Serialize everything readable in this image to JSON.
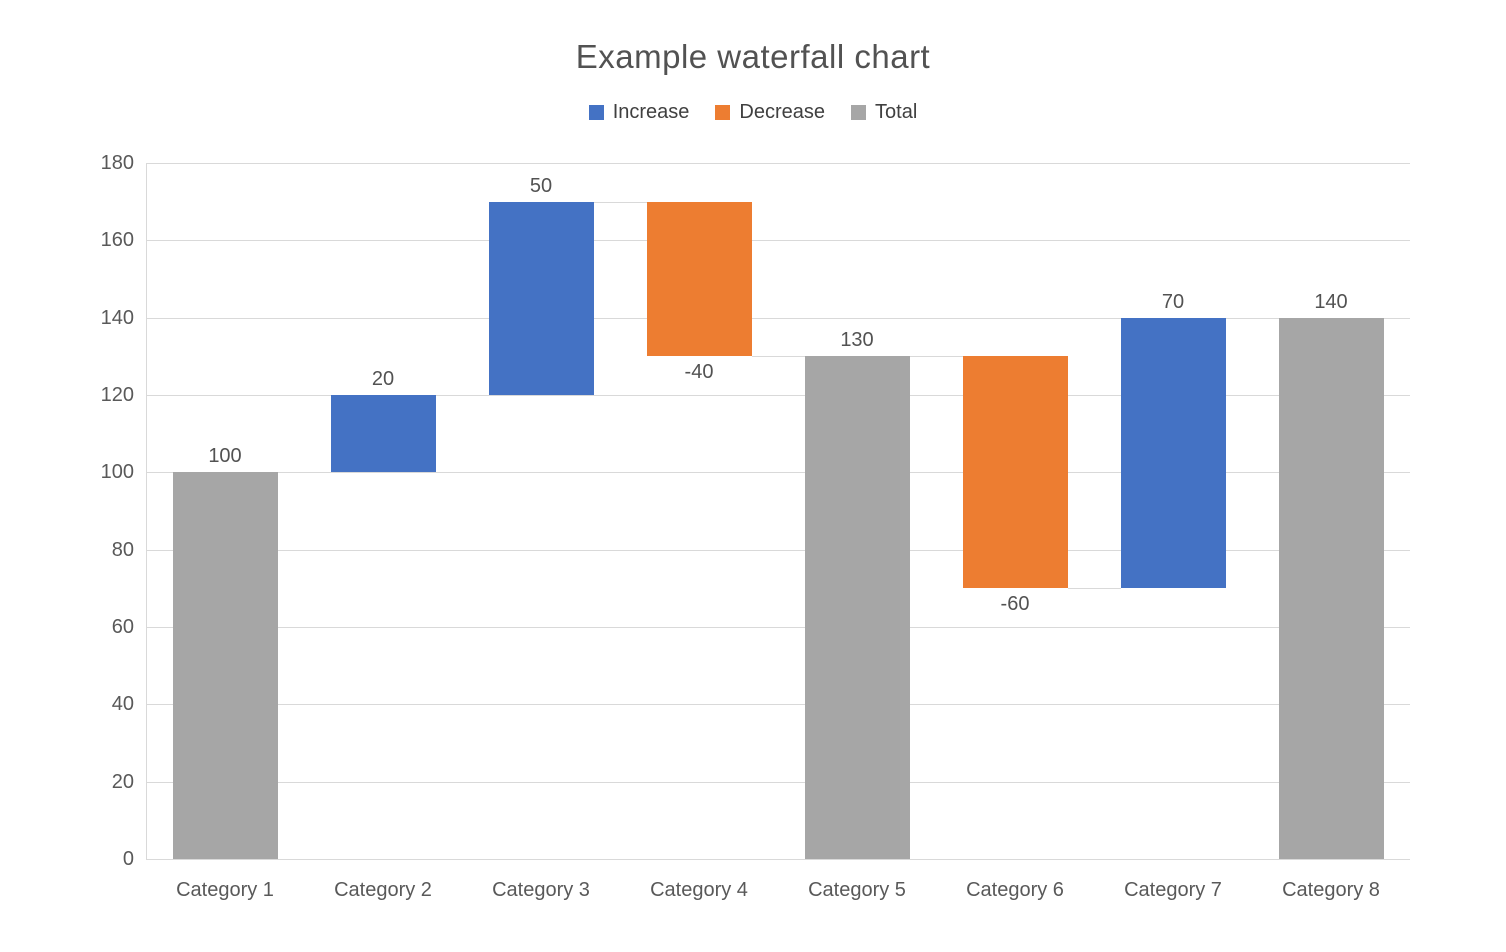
{
  "chart_data": {
    "type": "bar",
    "subtype": "waterfall",
    "title": "Example waterfall chart",
    "categories": [
      "Category 1",
      "Category 2",
      "Category 3",
      "Category 4",
      "Category 5",
      "Category 6",
      "Category 7",
      "Category 8"
    ],
    "values": [
      100,
      20,
      50,
      -40,
      130,
      -60,
      70,
      140
    ],
    "points": [
      {
        "category": "Category 1",
        "kind": "Total",
        "value": 100,
        "start": 0,
        "end": 100,
        "label": "100"
      },
      {
        "category": "Category 2",
        "kind": "Increase",
        "value": 20,
        "start": 100,
        "end": 120,
        "label": "20"
      },
      {
        "category": "Category 3",
        "kind": "Increase",
        "value": 50,
        "start": 120,
        "end": 170,
        "label": "50"
      },
      {
        "category": "Category 4",
        "kind": "Decrease",
        "value": -40,
        "start": 170,
        "end": 130,
        "label": "-40"
      },
      {
        "category": "Category 5",
        "kind": "Total",
        "value": 130,
        "start": 0,
        "end": 130,
        "label": "130"
      },
      {
        "category": "Category 6",
        "kind": "Decrease",
        "value": -60,
        "start": 130,
        "end": 70,
        "label": "-60"
      },
      {
        "category": "Category 7",
        "kind": "Increase",
        "value": 70,
        "start": 70,
        "end": 140,
        "label": "70"
      },
      {
        "category": "Category 8",
        "kind": "Total",
        "value": 140,
        "start": 0,
        "end": 140,
        "label": "140"
      }
    ],
    "legend": [
      {
        "label": "Increase",
        "kind": "Increase"
      },
      {
        "label": "Decrease",
        "kind": "Decrease"
      },
      {
        "label": "Total",
        "kind": "Total"
      }
    ],
    "legend_position": "top",
    "ylim": [
      0,
      180
    ],
    "ytick_step": 20,
    "yticks": [
      "0",
      "20",
      "40",
      "60",
      "80",
      "100",
      "120",
      "140",
      "160",
      "180"
    ],
    "grid": true,
    "connectors": true
  },
  "colors": {
    "increase": "#4472C4",
    "decrease": "#ED7D31",
    "total": "#A6A6A6",
    "gridline": "#D9D9D9",
    "axis_line": "#D9D9D9",
    "connector": "#D9D9D9",
    "title_text": "#525252",
    "legend_text": "#404040",
    "axis_text": "#595959",
    "label_text": "#525252",
    "background": "#FFFFFF"
  }
}
